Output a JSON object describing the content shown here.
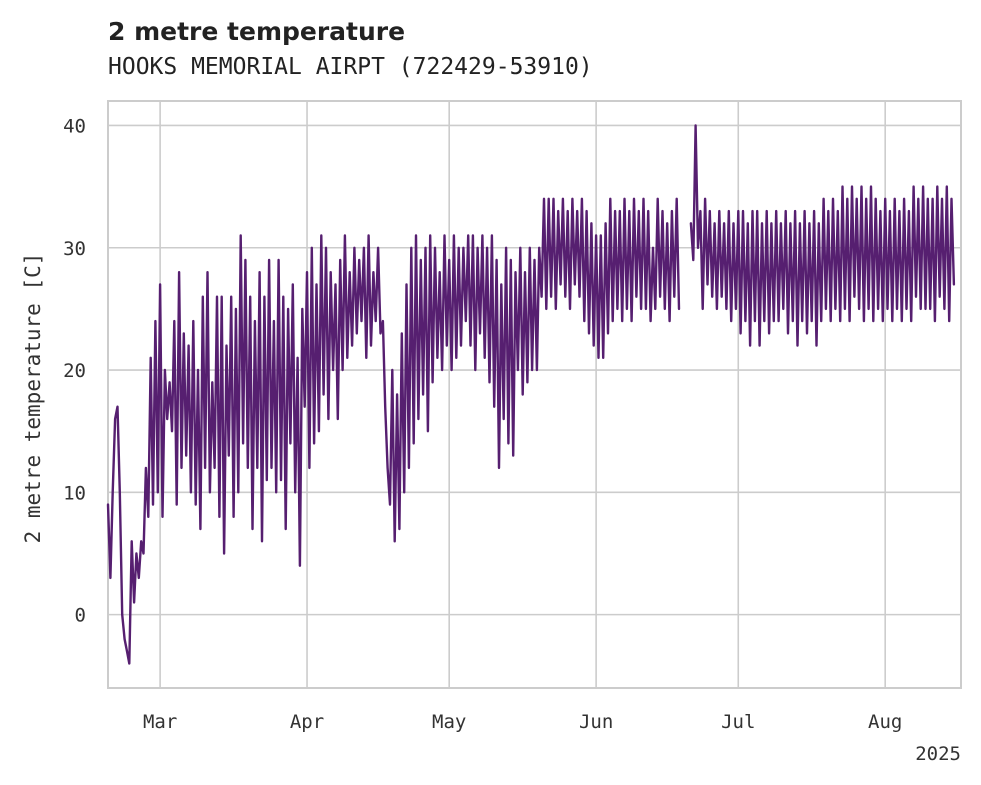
{
  "chart_data": {
    "type": "line",
    "title": "2 metre temperature",
    "subtitle": "HOOKS MEMORIAL AIRPT (722429-53910)",
    "xlabel": "",
    "ylabel": "2 metre temperature [C]",
    "xlim": [
      "2025-02-18",
      "2025-08-17"
    ],
    "ylim": [
      -6,
      42
    ],
    "grid": true,
    "legend": "none",
    "x_ticks": [
      {
        "date": "2025-03-01",
        "label": "Mar"
      },
      {
        "date": "2025-04-01",
        "label": "Apr"
      },
      {
        "date": "2025-05-01",
        "label": "May"
      },
      {
        "date": "2025-06-01",
        "label": "Jun"
      },
      {
        "date": "2025-07-01",
        "label": "Jul"
      },
      {
        "date": "2025-08-01",
        "label": "Aug"
      }
    ],
    "x_offset_label": "2025",
    "y_ticks": [
      0,
      10,
      20,
      30,
      40
    ],
    "series": [
      {
        "name": "",
        "color": "#561f70",
        "x_start": "2025-02-18",
        "x_step_days": 0.5,
        "segments": [
          {
            "start_index": 0,
            "values": [
              9,
              3,
              10,
              16,
              17,
              10,
              0,
              -2,
              -3,
              -4,
              6,
              1,
              5,
              3,
              6,
              5,
              12,
              8,
              21,
              9,
              24,
              10,
              27,
              8,
              20,
              16,
              19,
              15,
              24,
              9,
              28,
              12,
              23,
              13,
              22,
              10,
              24,
              9,
              20,
              7,
              26,
              12,
              28,
              10,
              19,
              12,
              26,
              8,
              26,
              5,
              22,
              13,
              26,
              8,
              25,
              10,
              31,
              14,
              29,
              12,
              26,
              7,
              24,
              12,
              28,
              6,
              26,
              11,
              29,
              12,
              24,
              10,
              29,
              11,
              26,
              7,
              25,
              14,
              27,
              10,
              21,
              4,
              25,
              17,
              28,
              12,
              30,
              14,
              27,
              15,
              31,
              18,
              30,
              16,
              28,
              20,
              27,
              16,
              29,
              20,
              31,
              21,
              28,
              22,
              30,
              23,
              29,
              24,
              30,
              21,
              31,
              22,
              28,
              24,
              30,
              23,
              24,
              17,
              12,
              9,
              20,
              6,
              18,
              7,
              23,
              10,
              27,
              12,
              30,
              14,
              31,
              16,
              29,
              18,
              30,
              15,
              31,
              19,
              30,
              21,
              28,
              20,
              31,
              22,
              29,
              20,
              31,
              21,
              30,
              22,
              30,
              24,
              31,
              22,
              31,
              20,
              30,
              23,
              31,
              21,
              30,
              19,
              31,
              17,
              29,
              12,
              27,
              16,
              30,
              14,
              29,
              13,
              28,
              20,
              30,
              18,
              28,
              19,
              30,
              20,
              29,
              20,
              30,
              26,
              34,
              25,
              34,
              26,
              34,
              25,
              33,
              27,
              34,
              26,
              33,
              25,
              34,
              27,
              33,
              26,
              34,
              24,
              33,
              23,
              32,
              22,
              31,
              21,
              31,
              21,
              32,
              23,
              34,
              24,
              33,
              25,
              33,
              24,
              34,
              25,
              33,
              24,
              34,
              26,
              33,
              25,
              34,
              25,
              33,
              24,
              30,
              25,
              34,
              26,
              33,
              25,
              32,
              24,
              33,
              26,
              34,
              25
            ]
          },
          {
            "start_index": 246,
            "values": [
              32,
              29,
              40,
              30,
              33,
              25,
              34,
              27,
              33,
              26,
              32,
              25,
              33,
              26,
              32,
              25,
              33,
              24,
              32,
              25,
              33,
              23,
              33,
              24,
              32,
              22,
              33,
              24,
              33,
              22,
              32,
              24,
              33,
              23,
              32,
              24,
              33,
              24,
              32,
              25,
              33,
              23,
              32,
              24,
              33,
              22,
              32,
              24,
              33,
              23,
              32,
              24,
              33,
              22,
              32,
              24,
              34,
              25,
              33,
              24,
              34,
              25,
              33,
              24,
              35,
              25,
              34,
              24,
              35,
              26,
              34,
              25,
              35,
              24,
              34,
              25,
              35,
              24,
              34,
              25,
              33,
              24,
              34,
              25,
              33,
              24,
              34,
              25,
              33,
              24,
              34,
              25,
              33,
              24,
              35,
              26,
              34,
              25,
              35,
              25,
              34,
              25,
              34,
              24,
              35,
              26,
              34,
              25,
              35,
              24,
              34,
              27
            ]
          }
        ]
      }
    ]
  }
}
